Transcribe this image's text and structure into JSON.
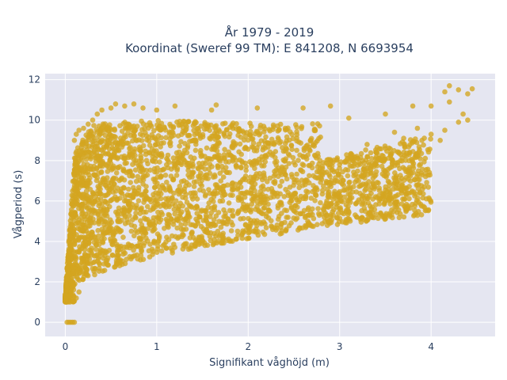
{
  "chart_data": {
    "type": "scatter",
    "title_line1": "År 1979 - 2019",
    "title_line2": "Koordinat (Sweref 99 TM): E 841208, N 6693954",
    "xlabel": "Signifikant våghöjd (m)",
    "ylabel": "Vågperiod (s)",
    "xlim": [
      -0.22,
      4.7
    ],
    "ylim": [
      -0.7,
      12.3
    ],
    "x_ticks": [
      0,
      1,
      2,
      3,
      4
    ],
    "x_tick_labels": [
      "0",
      "1",
      "2",
      "3",
      "4"
    ],
    "y_ticks": [
      0,
      2,
      4,
      6,
      8,
      10,
      12
    ],
    "y_tick_labels": [
      "0",
      "2",
      "4",
      "6",
      "8",
      "10",
      "12"
    ],
    "grid": true,
    "marker_color": "#D4A520",
    "series": [
      {
        "points": [
          [
            0.02,
            0.0
          ],
          [
            0.04,
            0.0
          ],
          [
            0.06,
            0.0
          ],
          [
            0.08,
            0.0
          ],
          [
            0.1,
            0.0
          ],
          [
            0.05,
            1.3
          ],
          [
            0.08,
            1.1
          ],
          [
            0.1,
            1.05
          ],
          [
            0.12,
            1.2
          ],
          [
            0.15,
            1.5
          ],
          [
            0.1,
            9.0
          ],
          [
            0.12,
            9.3
          ],
          [
            0.15,
            9.5
          ],
          [
            0.2,
            9.6
          ],
          [
            0.25,
            9.8
          ],
          [
            0.3,
            10.0
          ],
          [
            0.35,
            10.3
          ],
          [
            0.4,
            10.5
          ],
          [
            0.5,
            10.6
          ],
          [
            0.55,
            10.8
          ],
          [
            0.65,
            10.7
          ],
          [
            0.75,
            10.8
          ],
          [
            0.85,
            10.6
          ],
          [
            1.0,
            10.5
          ],
          [
            1.2,
            10.7
          ],
          [
            1.6,
            10.5
          ],
          [
            1.65,
            10.75
          ],
          [
            2.1,
            10.6
          ],
          [
            2.6,
            10.6
          ],
          [
            2.9,
            10.7
          ],
          [
            3.1,
            10.1
          ],
          [
            3.5,
            10.3
          ],
          [
            3.8,
            10.7
          ],
          [
            4.0,
            10.7
          ],
          [
            4.2,
            10.9
          ],
          [
            4.15,
            11.4
          ],
          [
            4.2,
            11.7
          ],
          [
            4.3,
            11.5
          ],
          [
            4.4,
            11.3
          ],
          [
            4.45,
            11.55
          ],
          [
            3.85,
            9.6
          ],
          [
            3.9,
            9.0
          ],
          [
            4.0,
            9.3
          ],
          [
            4.1,
            9.0
          ],
          [
            4.15,
            9.5
          ],
          [
            4.3,
            9.9
          ],
          [
            4.35,
            10.3
          ],
          [
            4.4,
            10.0
          ],
          [
            3.6,
            9.4
          ],
          [
            3.7,
            9.1
          ],
          [
            3.3,
            8.8
          ],
          [
            3.5,
            8.6
          ],
          [
            3.2,
            8.1
          ],
          [
            3.4,
            8.4
          ],
          [
            3.0,
            7.8
          ]
        ]
      }
    ]
  }
}
